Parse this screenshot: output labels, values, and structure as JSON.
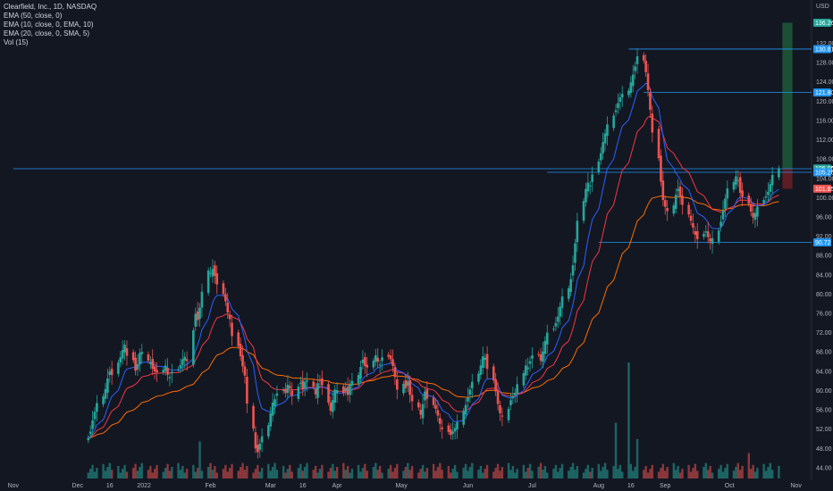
{
  "legend": {
    "title": "Clearfield, Inc., 1D, NASDAQ",
    "ema50": "EMA (50, close, 0)",
    "ema10": "EMA (10, close, 0, EMA, 10)",
    "ema20": "EMA (20, close, 0, SMA, 5)",
    "vol": "Vol (15)"
  },
  "currency": "USD",
  "chart_data": {
    "type": "candlestick",
    "title": "Clearfield, Inc., 1D, NASDAQ",
    "ylabel": "USD",
    "ylim": [
      42.5,
      139.5
    ],
    "y_ticks": [
      44,
      48,
      52,
      56,
      60,
      64,
      68,
      72,
      76,
      80,
      84,
      88,
      92,
      96,
      100,
      104,
      108,
      112,
      116,
      120,
      124,
      128,
      132
    ],
    "x_ticks": [
      "Nov",
      "Dec",
      "16",
      "2022",
      "Feb",
      "Mar",
      "16",
      "Apr",
      "May",
      "Jun",
      "Jul",
      "Aug",
      "16",
      "Sep",
      "Oct",
      "Nov"
    ],
    "x_tick_dates": [
      "2021-11-01",
      "2021-12-01",
      "2021-12-16",
      "2022-01-01",
      "2022-02-01",
      "2022-03-01",
      "2022-03-16",
      "2022-04-01",
      "2022-05-01",
      "2022-06-01",
      "2022-07-01",
      "2022-08-01",
      "2022-08-16",
      "2022-09-01",
      "2022-10-01",
      "2022-11-01"
    ],
    "colors": {
      "up": "#26a69a",
      "down": "#ef5350",
      "ema10": "#2962ff",
      "ema20": "#f23645",
      "ema50": "#ff6d00",
      "hline": "#2196f3",
      "profit_zone": "#1e5b3a",
      "stop_zone": "#6b1e25",
      "vol_line": "#2962ff",
      "current_price": "#26a69a"
    },
    "price_tags": [
      {
        "label": "136.26",
        "value": 136.26,
        "color": "#26a69a"
      },
      {
        "label": "130.81",
        "value": 130.81,
        "color": "#2196f3"
      },
      {
        "label": "121.80",
        "value": 121.8,
        "color": "#2196f3"
      },
      {
        "label": "106.00",
        "value": 106.0,
        "color": "#2196f3"
      },
      {
        "label": "106.05",
        "value": 106.05,
        "color": "#26a69a"
      },
      {
        "label": "105.26",
        "value": 105.26,
        "color": "#2196f3"
      },
      {
        "label": "101.85",
        "value": 101.85,
        "color": "#ef5350"
      },
      {
        "label": "90.72",
        "value": 90.72,
        "color": "#2196f3"
      }
    ],
    "horizontal_lines": [
      {
        "value": 130.81,
        "from": "2022-08-15"
      },
      {
        "value": 121.8,
        "from": "2022-08-22"
      },
      {
        "value": 106.0,
        "from": "2021-11-01"
      },
      {
        "value": 105.26,
        "from": "2022-07-08"
      },
      {
        "value": 90.72,
        "from": "2022-08-01"
      }
    ],
    "position": {
      "entry": 106.05,
      "target": 136.26,
      "stop": 101.85,
      "from": "2022-10-24",
      "to": "2022-11-01"
    },
    "closes": [
      50.2,
      51.5,
      53.8,
      55.6,
      57.4,
      58.8,
      60.3,
      62.5,
      64.0,
      63.2,
      65.8,
      66.9,
      68.4,
      69.5,
      67.2,
      66.3,
      64.1,
      65.5,
      67.8,
      68.0,
      66.2,
      65.8,
      64.5,
      64.0,
      63.8,
      64.3,
      65.2,
      63.3,
      62.8,
      63.9,
      64.4,
      65.3,
      66.5,
      67.0,
      66.1,
      72.5,
      75.9,
      74.6,
      77.2,
      80.5,
      84.9,
      84.4,
      85.2,
      83.8,
      82.0,
      80.0,
      78.5,
      76.2,
      74.8,
      71.3,
      69.2,
      67.1,
      65.0,
      63.1,
      57.3,
      52.1,
      48.0,
      47.2,
      49.0,
      50.5,
      52.8,
      55.3,
      57.5,
      58.2,
      59.4,
      60.1,
      59.5,
      61.2,
      60.5,
      59.0,
      60.8,
      61.6,
      60.2,
      61.8,
      62.1,
      60.8,
      59.2,
      61.5,
      62.0,
      61.1,
      57.5,
      55.8,
      58.0,
      60.2,
      60.1,
      59.4,
      60.5,
      59.1,
      61.3,
      62.0,
      63.2,
      64.9,
      66.4,
      65.1,
      64.8,
      66.2,
      67.3,
      66.0,
      65.4,
      66.9,
      67.0,
      66.5,
      65.1,
      62.8,
      60.2,
      61.4,
      60.5,
      61.9,
      59.1,
      57.8,
      56.5,
      55.0,
      57.2,
      59.8,
      58.3,
      57.0,
      56.2,
      54.8,
      53.1,
      52.0,
      51.4,
      50.8,
      51.5,
      52.2,
      53.4,
      55.8,
      57.0,
      58.6,
      60.2,
      61.8,
      63.5,
      65.2,
      67.1,
      66.8,
      64.5,
      62.1,
      59.8,
      57.2,
      55.3,
      54.6,
      56.2,
      58.0,
      58.8,
      59.5,
      61.3,
      63.6,
      65.2,
      64.8,
      66.1,
      67.3,
      67.5,
      66.2,
      68.1,
      70.3,
      72.0,
      72.8,
      74.0,
      75.3,
      77.4,
      79.5,
      81.2,
      83.1,
      86.0,
      90.5,
      95.2,
      99.3,
      101.8,
      103.1,
      102.5,
      104.8,
      107.5,
      109.2,
      111.5,
      113.3,
      115.2,
      117.0,
      118.1,
      119.6,
      120.8,
      121.5,
      122.2,
      123.9,
      125.5,
      127.2,
      129.3,
      128.4,
      126.0,
      122.3,
      118.2,
      113.5,
      108.2,
      103.3,
      99.5,
      98.1,
      97.2,
      98.4,
      100.6,
      101.8,
      100.2,
      98.5,
      96.5,
      95.2,
      93.8,
      92.3,
      91.4,
      92.5,
      93.0,
      91.8,
      90.9,
      91.6,
      93.2,
      95.0,
      97.4,
      99.8,
      101.9,
      103.2,
      104.4,
      103.5,
      101.0,
      100.2,
      98.7,
      97.1,
      95.9,
      96.8,
      98.1,
      99.5,
      100.3,
      101.2,
      102.8,
      104.7,
      106.05
    ],
    "volume_spikes": [
      {
        "date": "2022-01-27",
        "relative": 0.32
      },
      {
        "date": "2022-08-15",
        "relative": 1.0
      },
      {
        "date": "2022-08-09",
        "relative": 0.48
      },
      {
        "date": "2022-08-19",
        "relative": 0.34
      },
      {
        "date": "2022-10-10",
        "relative": 0.22
      }
    ]
  }
}
